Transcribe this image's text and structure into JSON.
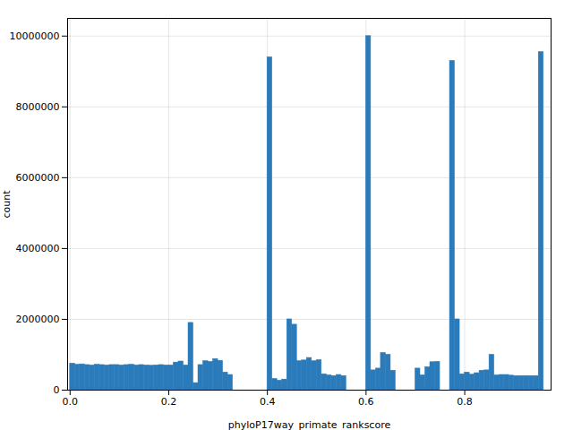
{
  "chart_data": {
    "type": "histogram",
    "xlabel": "phyloP17way_primate_rankscore",
    "ylabel": "count",
    "color": "#2b7bba",
    "bins": [
      0,
      0.01,
      0.02,
      0.03,
      0.04,
      0.05,
      0.06,
      0.07,
      0.08,
      0.09,
      0.1,
      0.11,
      0.12,
      0.13,
      0.14,
      0.15,
      0.16,
      0.17,
      0.18,
      0.19,
      0.2,
      0.21,
      0.22,
      0.23,
      0.24,
      0.25,
      0.26,
      0.27,
      0.28,
      0.29,
      0.3,
      0.31,
      0.32,
      0.33,
      0.34,
      0.35,
      0.36,
      0.37,
      0.38,
      0.39,
      0.4,
      0.41,
      0.42,
      0.43,
      0.44,
      0.45,
      0.46,
      0.47,
      0.48,
      0.49,
      0.5,
      0.51,
      0.52,
      0.53,
      0.54,
      0.55,
      0.56,
      0.57,
      0.58,
      0.59,
      0.6,
      0.61,
      0.62,
      0.63,
      0.64,
      0.65,
      0.66,
      0.67,
      0.68,
      0.69,
      0.7,
      0.71,
      0.72,
      0.73,
      0.74,
      0.75,
      0.76,
      0.77,
      0.78,
      0.79,
      0.8,
      0.81,
      0.82,
      0.83,
      0.84,
      0.85,
      0.86,
      0.87,
      0.88,
      0.89,
      0.9,
      0.91,
      0.92,
      0.93,
      0.94,
      0.95,
      0.96,
      0.97,
      0.98,
      0.99,
      1
    ],
    "values": [
      750000,
      720000,
      730000,
      710000,
      700000,
      720000,
      710000,
      700000,
      710000,
      710000,
      700000,
      710000,
      720000,
      700000,
      710000,
      700000,
      690000,
      700000,
      710000,
      700000,
      700000,
      780000,
      810000,
      700000,
      1900000,
      200000,
      710000,
      820000,
      800000,
      880000,
      830000,
      500000,
      430000,
      0,
      0,
      0,
      0,
      0,
      0,
      0,
      9400000,
      320000,
      270000,
      300000,
      2000000,
      1850000,
      820000,
      840000,
      910000,
      820000,
      850000,
      450000,
      420000,
      400000,
      430000,
      400000,
      0,
      0,
      0,
      0,
      10000000,
      560000,
      610000,
      1050000,
      1000000,
      550000,
      0,
      0,
      0,
      0,
      610000,
      420000,
      650000,
      790000,
      800000,
      0,
      0,
      9300000,
      2000000,
      450000,
      500000,
      440000,
      480000,
      550000,
      560000,
      1000000,
      420000,
      430000,
      430000,
      410000,
      400000,
      400000,
      400000,
      400000,
      400000,
      9550000,
      0,
      0,
      0,
      0
    ],
    "xlim": [
      -0.005,
      0.975
    ],
    "ylim": [
      0,
      10500000
    ],
    "xticks": [
      {
        "value": 0,
        "label": "0.0"
      },
      0.2,
      0.4,
      0.6,
      0.8
    ],
    "yticks": [
      0,
      2000000,
      4000000,
      6000000,
      8000000,
      10000000
    ],
    "grid": true
  }
}
